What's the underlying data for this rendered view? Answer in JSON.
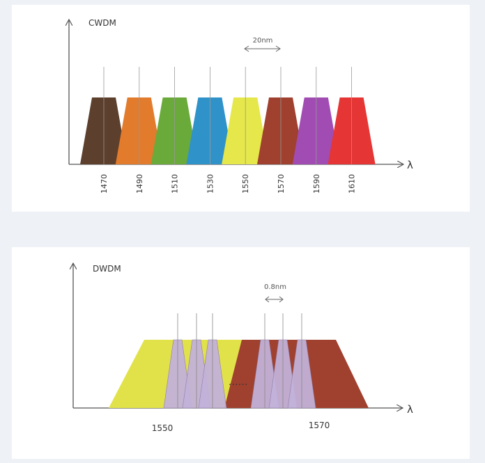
{
  "cwdm": {
    "title": "CWDM",
    "spacing_label": "20nm",
    "axis_symbol": "λ",
    "channels": [
      {
        "label": "1470",
        "color": "#5c3f2c"
      },
      {
        "label": "1490",
        "color": "#e27b2c"
      },
      {
        "label": "1510",
        "color": "#6aaa3a"
      },
      {
        "label": "1530",
        "color": "#2f92c9"
      },
      {
        "label": "1550",
        "color": "#e5e74a"
      },
      {
        "label": "1570",
        "color": "#a0402e"
      },
      {
        "label": "1590",
        "color": "#a14cb3"
      },
      {
        "label": "1610",
        "color": "#e53534"
      }
    ]
  },
  "dwdm": {
    "title": "DWDM",
    "spacing_label": "0.8nm",
    "axis_symbol": "λ",
    "band_colors": {
      "yellow": "#e1e24a",
      "brown": "#a0402e",
      "lavender": "#c2b1d8"
    },
    "label_left": "1550",
    "label_right": "1570",
    "ellipsis": "......"
  }
}
